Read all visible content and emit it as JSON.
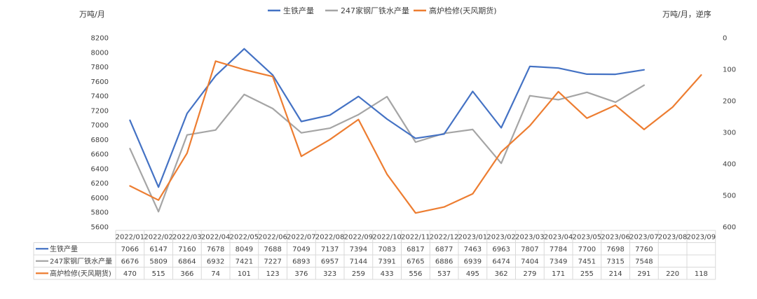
{
  "chart_data": {
    "type": "line",
    "y_left_unit": "万吨/月",
    "y_right_unit": "万吨/月，逆序",
    "y_left": {
      "min": 5600,
      "max": 8200,
      "ticks": [
        "8200",
        "8000",
        "7800",
        "7600",
        "7400",
        "7200",
        "7000",
        "6800",
        "6600",
        "6400",
        "6200",
        "6000",
        "5800",
        "5600"
      ]
    },
    "y_right": {
      "min": 0,
      "max": 600,
      "reversed": true,
      "ticks": [
        "0",
        "100",
        "200",
        "300",
        "400",
        "500",
        "600"
      ]
    },
    "categories": [
      "2022/01",
      "2022/02",
      "2022/03",
      "2022/04",
      "2022/05",
      "2022/06",
      "2022/07",
      "2022/08",
      "2022/09",
      "2022/10",
      "2022/11",
      "2022/12",
      "2023/01",
      "2023/02",
      "2023/03",
      "2023/04",
      "2023/05",
      "2023/06",
      "2023/07",
      "2023/08",
      "2023/09"
    ],
    "series": [
      {
        "name": "生铁产量",
        "color": "#4472C4",
        "axis": "left",
        "values": [
          7066,
          6147,
          7160,
          7678,
          8049,
          7688,
          7049,
          7137,
          7394,
          7083,
          6817,
          6877,
          7463,
          6963,
          7807,
          7784,
          7700,
          7698,
          7760,
          null,
          null
        ]
      },
      {
        "name": "247家钢厂铁水产量",
        "color": "#A5A5A5",
        "axis": "left",
        "values": [
          6676,
          5809,
          6864,
          6932,
          7421,
          7227,
          6893,
          6957,
          7144,
          7391,
          6765,
          6886,
          6939,
          6474,
          7404,
          7349,
          7451,
          7315,
          7548,
          null,
          null
        ]
      },
      {
        "name": "高炉检修(天风期货)",
        "color": "#ED7D31",
        "axis": "right",
        "values": [
          470,
          515,
          366,
          74,
          101,
          123,
          376,
          323,
          259,
          433,
          556,
          537,
          495,
          362,
          279,
          171,
          255,
          214,
          291,
          220,
          118
        ]
      }
    ],
    "table_values": [
      [
        "7066",
        "6147",
        "7160",
        "7678",
        "8049",
        "7688",
        "7049",
        "7137",
        "7394",
        "7083",
        "6817",
        "6877",
        "7463",
        "6963",
        "7807",
        "7784",
        "7700",
        "7698",
        "7760",
        "",
        ""
      ],
      [
        "6676",
        "5809",
        "6864",
        "6932",
        "7421",
        "7227",
        "6893",
        "6957",
        "7144",
        "7391",
        "6765",
        "6886",
        "6939",
        "6474",
        "7404",
        "7349",
        "7451",
        "7315",
        "7548",
        "",
        ""
      ],
      [
        "470",
        "515",
        "366",
        "74",
        "101",
        "123",
        "376",
        "323",
        "259",
        "433",
        "556",
        "537",
        "495",
        "362",
        "279",
        "171",
        "255",
        "214",
        "291",
        "220",
        "118"
      ]
    ]
  }
}
